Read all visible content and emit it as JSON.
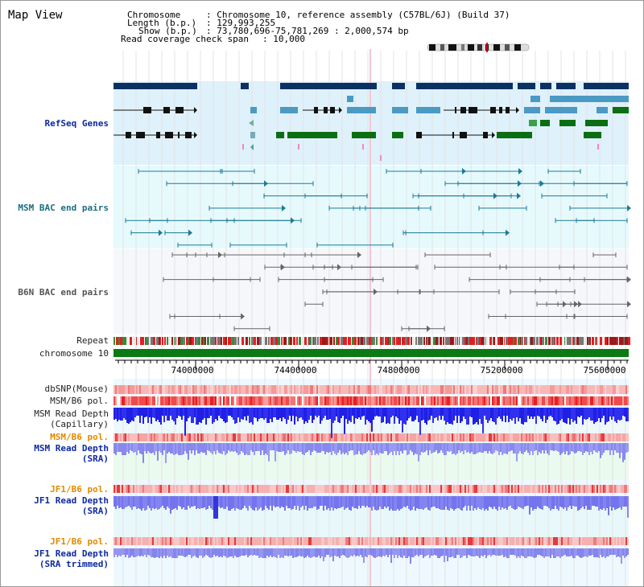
{
  "title": "Map View",
  "header": {
    "chromosome_key": "Chromosome",
    "chromosome_val": ": Chromosome 10, reference assembly (C57BL/6J) (Build 37)",
    "length_key": "Length (b.p.)",
    "length_val": ": 129,993,255",
    "show_key": "Show (b.p.)",
    "show_val": ": 73,780,696-75,781,269 : 2,000,574 bp",
    "coverage_key": "Read coverage check span",
    "coverage_val": ": 10,000"
  },
  "tracks": {
    "refseq": "RefSeq Genes",
    "msm_bac": "MSM BAC end pairs",
    "b6n_bac": "B6N BAC end pairs",
    "repeat": "Repeat",
    "chromosome": "chromosome 10",
    "dbsnp": "dbSNP(Mouse)",
    "msm_b6_pol": "MSM/B6 pol.",
    "msm_depth_cap_1": "MSM Read Depth",
    "msm_depth_cap_2": "(Capillary)",
    "msm_b6_pol_2": "MSM/B6 pol.",
    "msm_depth_sra_1": "MSM Read Depth",
    "msm_depth_sra_2": "(SRA)",
    "jf1_b6_pol": "JF1/B6 pol.",
    "jf1_depth_sra_1": "JF1 Read Depth",
    "jf1_depth_sra_2": "(SRA)",
    "jf1_b6_pol_2": "JF1/B6 pol.",
    "jf1_depth_tr_1": "JF1 Read Depth",
    "jf1_depth_tr_2": "(SRA trimmed)"
  },
  "axis": {
    "ticks": [
      "74000000",
      "74400000",
      "74800000",
      "75200000",
      "75600000"
    ]
  },
  "colors": {
    "refseq_bg": "#dff1fb",
    "msm_bac_bg": "#e6fafd",
    "b6n_bac_bg": "#f5f7fb",
    "gene_navy": "#0b3163",
    "gene_blue": "#4b9ac4",
    "gene_green": "#0b6e12",
    "chrom_green": "#0a7a15",
    "msm_line": "#1c7a96",
    "b6n_line": "#666666",
    "label_blue": "#0d2aa0",
    "label_teal": "#1c6e82",
    "label_orange": "#e28a00",
    "depth_blue": "#1a1ae8",
    "depth_light": "#7878f0"
  }
}
